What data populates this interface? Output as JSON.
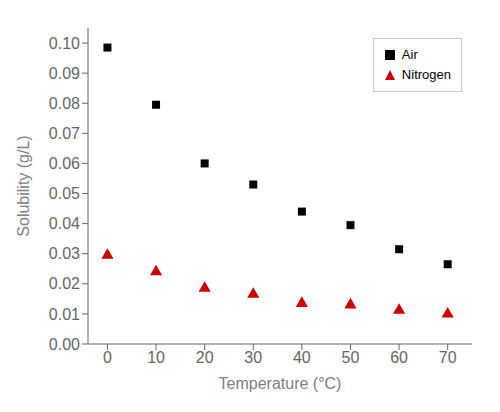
{
  "chart_data": {
    "type": "scatter",
    "xlabel": "Temperature (°C)",
    "ylabel": "Solubility (g/L)",
    "x": [
      0,
      10,
      20,
      30,
      40,
      50,
      60,
      70
    ],
    "series": [
      {
        "name": "Air",
        "color": "#000000",
        "marker": "square",
        "values": [
          0.0985,
          0.0795,
          0.06,
          0.053,
          0.044,
          0.0395,
          0.0315,
          0.0265
        ]
      },
      {
        "name": "Nitrogen",
        "color": "#cc0000",
        "marker": "triangle",
        "values": [
          0.0295,
          0.024,
          0.0185,
          0.0165,
          0.0135,
          0.013,
          0.0112,
          0.01
        ]
      }
    ],
    "xlim": [
      -4,
      75
    ],
    "ylim": [
      0.0,
      0.105
    ],
    "xticks": [
      0,
      10,
      20,
      30,
      40,
      50,
      60,
      70
    ],
    "yticks": [
      {
        "value": 0,
        "label": "0.00"
      },
      0.01,
      0.02,
      0.03,
      0.04,
      0.05,
      0.06,
      0.07,
      0.08,
      0.09,
      {
        "value": 0.1,
        "label": "0.10"
      }
    ],
    "grid": false,
    "legend": "upper right"
  }
}
